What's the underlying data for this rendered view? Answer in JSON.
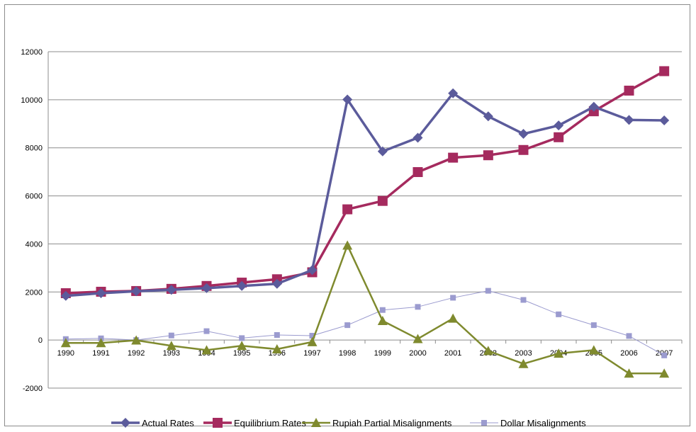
{
  "chart_data": {
    "type": "line",
    "title": "",
    "xlabel": "",
    "ylabel": "",
    "ylim": [
      -2000,
      12000
    ],
    "yticks": [
      -2000,
      0,
      2000,
      4000,
      6000,
      8000,
      10000,
      12000
    ],
    "ytick_labels": [
      "-2000",
      "0",
      "2000",
      "4000",
      "6000",
      "8000",
      "10000",
      "12000"
    ],
    "grid": "horizontal",
    "legend_position": "bottom",
    "x": [
      "1990",
      "1991",
      "1992",
      "1993",
      "1994",
      "1995",
      "1996",
      "1997",
      "1998",
      "1999",
      "2000",
      "2001",
      "2002",
      "2003",
      "2004",
      "2005",
      "2006",
      "2007"
    ],
    "series": [
      {
        "name": "Actual Rates",
        "color": "#5b5b9b",
        "marker": "diamond",
        "values": [
          1840,
          1950,
          2030,
          2090,
          2160,
          2250,
          2340,
          2910,
          10010,
          7850,
          8420,
          10270,
          9310,
          8580,
          8930,
          9710,
          9160,
          9140
        ]
      },
      {
        "name": "Equilibrium Rates",
        "color": "#a52a5e",
        "marker": "square",
        "values": [
          1950,
          2010,
          2040,
          2130,
          2250,
          2390,
          2530,
          2820,
          5440,
          5790,
          6990,
          7590,
          7690,
          7910,
          8440,
          9520,
          10380,
          11190
        ]
      },
      {
        "name": "Rupiah Partial Misalignments",
        "color": "#7f8a2e",
        "marker": "triangle",
        "values": [
          -120,
          -120,
          -10,
          -240,
          -420,
          -240,
          -380,
          -80,
          3940,
          800,
          50,
          900,
          -450,
          -990,
          -560,
          -420,
          -1390,
          -1390
        ]
      },
      {
        "name": "Dollar Misalignments",
        "color": "#9b9bcf",
        "marker": "small-square",
        "values": [
          40,
          70,
          0,
          190,
          370,
          80,
          210,
          180,
          620,
          1250,
          1380,
          1760,
          2050,
          1670,
          1070,
          620,
          170,
          -640
        ]
      }
    ]
  }
}
